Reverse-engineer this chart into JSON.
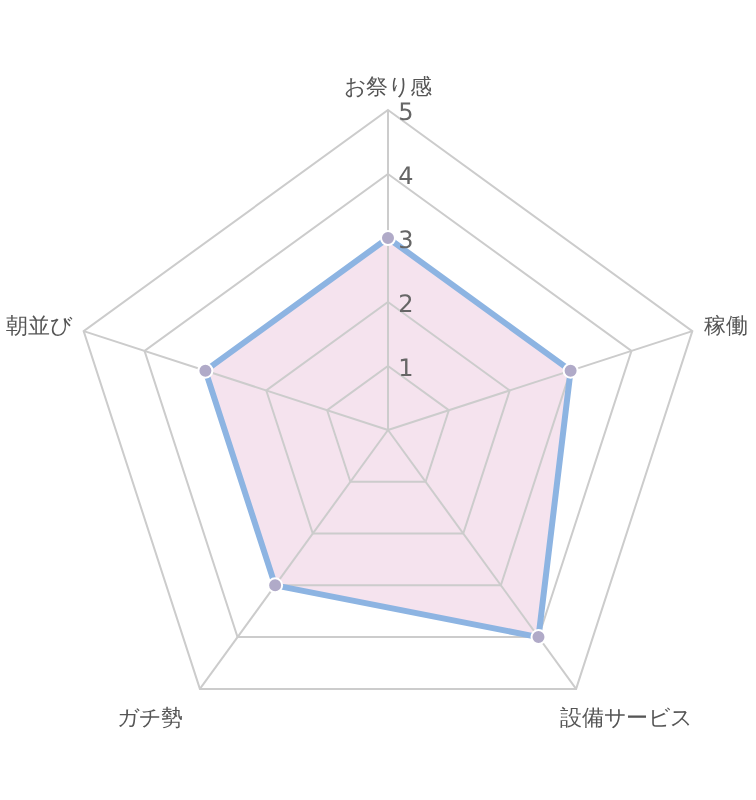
{
  "chart_data": {
    "type": "radar",
    "categories": [
      "お祭り感",
      "稼働",
      "設備サービス",
      "ガチ勢",
      "朝並び"
    ],
    "series": [
      {
        "color": "#8db4e2",
        "values": [
          3,
          3,
          4,
          3,
          3
        ]
      }
    ],
    "ylim": [
      0,
      5
    ],
    "yticks": [
      1,
      2,
      3,
      4,
      5
    ],
    "grid": true,
    "marker": "circle"
  }
}
